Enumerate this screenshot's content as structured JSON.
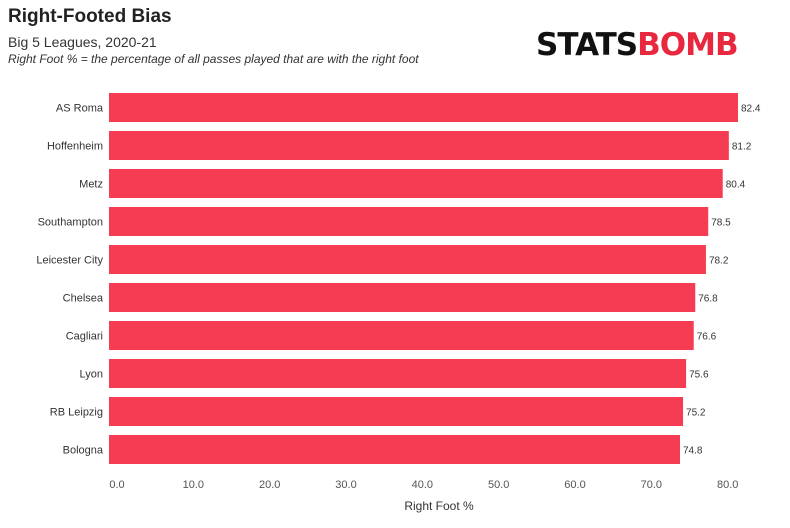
{
  "header": {
    "title": "Right-Footed Bias",
    "subtitle": "Big 5 Leagues, 2020-21",
    "note": "Right Foot % = the percentage of all passes played that are with the right foot"
  },
  "logo": {
    "part1": "STATS",
    "part2": "BOMB"
  },
  "colors": {
    "bar": "#f53c53",
    "text": "#333333",
    "axis_text": "#555555"
  },
  "chart_data": {
    "type": "bar",
    "orientation": "horizontal",
    "categories": [
      "AS Roma",
      "Hoffenheim",
      "Metz",
      "Southampton",
      "Leicester City",
      "Chelsea",
      "Cagliari",
      "Lyon",
      "RB Leipzig",
      "Bologna"
    ],
    "values": [
      82.4,
      81.2,
      80.4,
      78.5,
      78.2,
      76.8,
      76.6,
      75.6,
      75.2,
      74.8
    ],
    "value_labels": [
      "82.4",
      "81.2",
      "80.4",
      "78.5",
      "78.2",
      "76.8",
      "76.6",
      "75.6",
      "75.2",
      "74.8"
    ],
    "xlabel": "Right Foot %",
    "xlim": [
      0,
      82.4
    ],
    "xticks": [
      0,
      10,
      20,
      30,
      40,
      50,
      60,
      70,
      80
    ],
    "xtick_labels": [
      "0.0",
      "10.0",
      "20.0",
      "30.0",
      "40.0",
      "50.0",
      "60.0",
      "70.0",
      "80.0"
    ],
    "grid": false
  }
}
